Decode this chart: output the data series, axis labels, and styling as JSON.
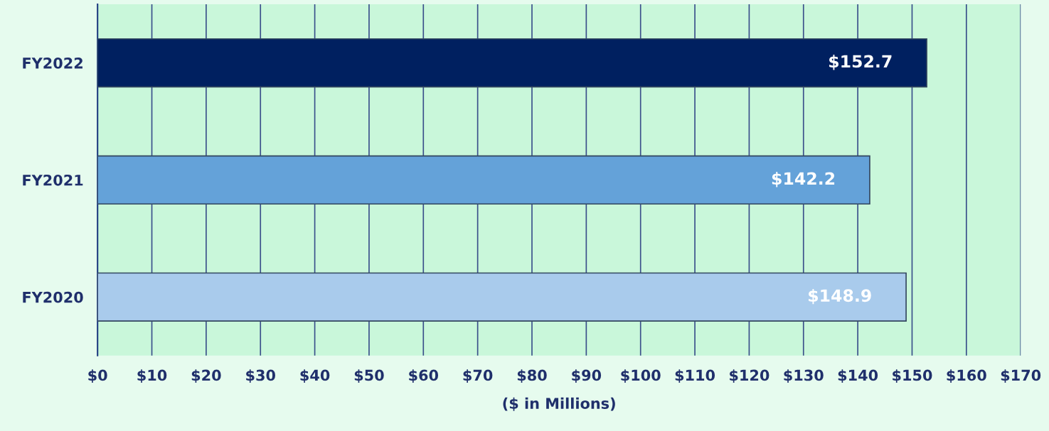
{
  "chart_data": {
    "type": "bar",
    "orientation": "horizontal",
    "xlabel": "($ in Millions)",
    "categories": [
      "FY2022",
      "FY2021",
      "FY2020"
    ],
    "values": [
      152.7,
      142.2,
      148.9
    ],
    "colors": [
      "#002060",
      "#64a2d9",
      "#a9cbec"
    ],
    "value_labels": [
      "$152.7",
      "$142.2",
      "$148.9"
    ],
    "xlim": [
      0,
      170
    ],
    "xticks": [
      {
        "value": 0,
        "label": "$0"
      },
      {
        "value": 10,
        "label": "$10"
      },
      {
        "value": 20,
        "label": "$20"
      },
      {
        "value": 30,
        "label": "$30"
      },
      {
        "value": 40,
        "label": "$40"
      },
      {
        "value": 50,
        "label": "$50"
      },
      {
        "value": 60,
        "label": "$60"
      },
      {
        "value": 70,
        "label": "$70"
      },
      {
        "value": 80,
        "label": "$80"
      },
      {
        "value": 90,
        "label": "$90"
      },
      {
        "value": 100,
        "label": "$100"
      },
      {
        "value": 110,
        "label": "$110"
      },
      {
        "value": 120,
        "label": "$120"
      },
      {
        "value": 130,
        "label": "$130"
      },
      {
        "value": 140,
        "label": "$140"
      },
      {
        "value": 150,
        "label": "$150"
      },
      {
        "value": 160,
        "label": "$160"
      },
      {
        "value": 170,
        "label": "$170"
      }
    ],
    "grid": "x"
  }
}
